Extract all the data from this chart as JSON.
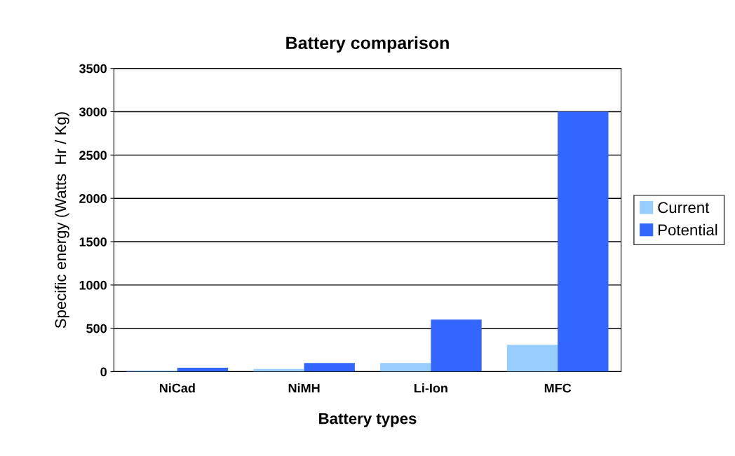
{
  "chart_data": {
    "type": "bar",
    "title": "Battery comparison",
    "xlabel": "Battery types",
    "ylabel": "Specific energy (Watts  Hr / Kg)",
    "categories": [
      "NiCad",
      "NiMH",
      "Li-Ion",
      "MFC"
    ],
    "series": [
      {
        "name": "Current",
        "color": "#99ccff",
        "values": [
          10,
          30,
          100,
          310
        ]
      },
      {
        "name": "Potential",
        "color": "#3366ff",
        "values": [
          45,
          100,
          600,
          3000
        ]
      }
    ],
    "ylim": [
      0,
      3500
    ],
    "yticks": [
      0,
      500,
      1000,
      1500,
      2000,
      2500,
      3000,
      3500
    ],
    "grid": "y",
    "legend": "right"
  }
}
